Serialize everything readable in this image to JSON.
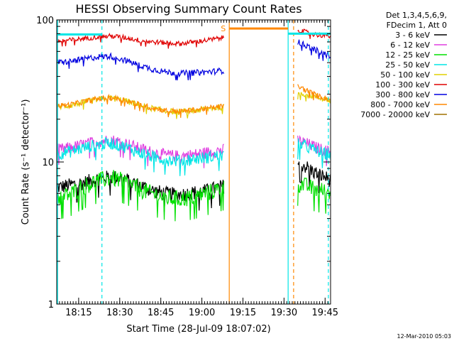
{
  "chart_data": {
    "type": "line",
    "title": "HESSI Observing Summary Count Rates",
    "xlabel": "Start Time (28-Jul-09 18:07:02)",
    "ylabel": "Count Rate (s⁻¹ detector⁻¹)",
    "yscale": "log",
    "ylim": [
      1,
      100
    ],
    "xlim_minutes": [
      0,
      100
    ],
    "y_ticks": [
      {
        "value": 1,
        "label": "1"
      },
      {
        "value": 10,
        "label": "10"
      },
      {
        "value": 100,
        "label": "100"
      }
    ],
    "x_ticks": [
      {
        "minute": 8,
        "label": "18:15"
      },
      {
        "minute": 23,
        "label": "18:30"
      },
      {
        "minute": 38,
        "label": "18:45"
      },
      {
        "minute": 53,
        "label": "19:00"
      },
      {
        "minute": 68,
        "label": "19:15"
      },
      {
        "minute": 83,
        "label": "19:30"
      },
      {
        "minute": 98,
        "label": "19:45"
      }
    ],
    "legend": {
      "placement": "top-right",
      "header_lines": [
        "Det 1,3,4,5,6,9,",
        "FDecim 1, Att 0"
      ]
    },
    "series": [
      {
        "name": "3 - 6 keV",
        "color": "#000000",
        "segments": [
          {
            "x": [
              0,
              5,
              10,
              15,
              20,
              25,
              30,
              35,
              40,
              45,
              50,
              55,
              61
            ],
            "y": [
              6.6,
              6.9,
              7.2,
              7.6,
              7.9,
              7.6,
              6.9,
              6.3,
              6.0,
              5.9,
              6.1,
              6.3,
              6.8
            ]
          },
          {
            "x": [
              88,
              91,
              94,
              97,
              100
            ],
            "y": [
              10.0,
              9.3,
              8.5,
              8.0,
              7.5
            ]
          }
        ]
      },
      {
        "name": "6 - 12 keV",
        "color": "#e03fe0",
        "segments": [
          {
            "x": [
              0,
              5,
              10,
              15,
              20,
              25,
              30,
              35,
              40,
              45,
              50,
              55,
              61
            ],
            "y": [
              12.2,
              12.6,
              13.3,
              14.0,
              14.3,
              13.6,
              12.5,
              11.7,
              11.2,
              11.0,
              11.3,
              11.7,
              12.2
            ]
          },
          {
            "x": [
              88,
              91,
              94,
              97,
              100
            ],
            "y": [
              14.2,
              13.6,
              12.8,
              12.2,
              11.8
            ]
          }
        ]
      },
      {
        "name": "12 - 25 keV",
        "color": "#00e000",
        "segments": [
          {
            "x": [
              0,
              5,
              10,
              15,
              20,
              25,
              30,
              35,
              40,
              45,
              50,
              55,
              61
            ],
            "y": [
              5.6,
              6.0,
              6.8,
              7.4,
              7.8,
              7.3,
              6.5,
              6.0,
              5.6,
              5.5,
              5.7,
              6.1,
              6.6
            ]
          },
          {
            "x": [
              88,
              91,
              94,
              97,
              100
            ],
            "y": [
              7.1,
              6.8,
              6.5,
              6.3,
              6.2
            ]
          }
        ]
      },
      {
        "name": "25 - 50 keV",
        "color": "#00e6e6",
        "segments": [
          {
            "x": [
              0,
              5,
              10,
              15,
              20,
              25,
              30,
              35,
              40,
              45,
              50,
              55,
              61
            ],
            "y": [
              11.4,
              11.9,
              12.6,
              13.3,
              13.6,
              12.8,
              11.7,
              10.9,
              10.4,
              10.2,
              10.5,
              10.8,
              11.2
            ]
          },
          {
            "x": [
              88,
              91,
              94,
              97,
              100
            ],
            "y": [
              13.4,
              12.9,
              12.2,
              11.6,
              11.2
            ]
          }
        ]
      },
      {
        "name": "50 - 100 keV",
        "color": "#e0d000",
        "segments": [
          {
            "x": [
              0,
              5,
              10,
              15,
              20,
              25,
              30,
              35,
              40,
              45,
              50,
              55,
              61
            ],
            "y": [
              24.5,
              25.0,
              26.3,
              27.6,
              28.2,
              27.0,
              25.2,
              23.8,
              22.8,
              22.5,
              23.0,
              23.7,
              24.5
            ]
          },
          {
            "x": [
              88,
              91,
              94,
              97,
              100
            ],
            "y": [
              31.0,
              30.0,
              29.0,
              28.0,
              27.0
            ]
          }
        ]
      },
      {
        "name": "100 - 300 keV",
        "color": "#e00000",
        "segments": [
          {
            "x": [
              0,
              5,
              10,
              15,
              20,
              25,
              30,
              35,
              40,
              45,
              50,
              55,
              61
            ],
            "y": [
              71,
              72,
              74,
              76,
              77,
              75,
              72,
              70,
              69,
              68,
              70,
              72,
              75
            ]
          },
          {
            "x": [
              88,
              91,
              94,
              97,
              100
            ],
            "y": [
              85,
              82,
              79,
              78,
              77
            ]
          }
        ]
      },
      {
        "name": "300 - 800 keV",
        "color": "#0000e0",
        "segments": [
          {
            "x": [
              0,
              5,
              10,
              15,
              20,
              25,
              30,
              35,
              40,
              45,
              50,
              55,
              61
            ],
            "y": [
              50,
              51,
              53,
              55,
              55.5,
              52,
              48,
              45,
              43,
              42,
              42.5,
              43,
              44
            ]
          },
          {
            "x": [
              88,
              91,
              94,
              97,
              100
            ],
            "y": [
              70,
              66,
              62,
              58,
              56
            ]
          }
        ]
      },
      {
        "name": "800 - 7000 keV",
        "color": "#ff8800",
        "segments": [
          {
            "x": [
              0,
              5,
              10,
              15,
              20,
              25,
              30,
              35,
              40,
              45,
              50,
              55,
              61
            ],
            "y": [
              24.8,
              25.3,
              26.6,
              27.8,
              28.4,
              27.2,
              25.4,
              24.0,
              23.0,
              22.7,
              23.2,
              23.9,
              24.7
            ]
          },
          {
            "x": [
              88,
              91,
              94,
              97,
              100
            ],
            "y": [
              34,
              32,
              30,
              28.5,
              27.5
            ]
          }
        ]
      },
      {
        "name": "7000 - 20000 keV",
        "color": "#a07000",
        "segments": []
      }
    ],
    "annotations": [
      {
        "type": "vline",
        "minute": 0.3,
        "color": "#00e6e6",
        "style": "solid"
      },
      {
        "type": "vline",
        "minute": 16.5,
        "color": "#00e6e6",
        "style": "dashed"
      },
      {
        "type": "vline",
        "minute": 63,
        "color": "#ff8800",
        "style": "solid"
      },
      {
        "type": "vline",
        "minute": 84.5,
        "color": "#00e6e6",
        "style": "solid"
      },
      {
        "type": "vline",
        "minute": 86.5,
        "color": "#ff8800",
        "style": "dashed"
      },
      {
        "type": "vline",
        "minute": 99.2,
        "color": "#00e6e6",
        "style": "dashed"
      },
      {
        "type": "hbar",
        "x": [
          0,
          16.5
        ],
        "y": 79,
        "color": "#00e6e6",
        "label": ""
      },
      {
        "type": "hbar",
        "x": [
          63,
          84.5
        ],
        "y": 87,
        "color": "#ff8800",
        "label": "S"
      },
      {
        "type": "hbar",
        "x": [
          84.5,
          100
        ],
        "y": 80,
        "color": "#00e6e6",
        "label": ""
      }
    ],
    "grid": false
  },
  "footer": {
    "timestamp": "12-Mar-2010 05:03"
  }
}
